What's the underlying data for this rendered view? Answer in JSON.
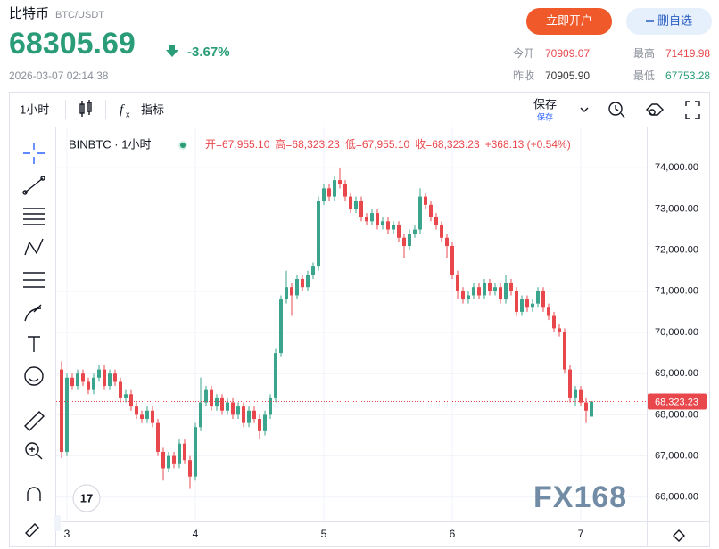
{
  "header": {
    "name": "比特币",
    "pair": "BTC/USDT",
    "price": "68305.69",
    "change": "-3.67%",
    "time": "2026-03-07 02:14:38",
    "buttons": [
      "立即开户",
      "删自选"
    ],
    "stats": [
      {
        "label": "今开",
        "value": "70909.07"
      },
      {
        "label": "最高",
        "value": "71419.98"
      },
      {
        "label": "昨收",
        "value": "70905.90"
      },
      {
        "label": "最低",
        "value": "67753.28"
      }
    ]
  },
  "toolbar": {
    "interval": "1小时",
    "indicators": "指标",
    "save": "保存",
    "save_sub": "保存"
  },
  "watermark": "FX168",
  "chart_data": {
    "type": "candlestick",
    "symbol": "BINBTC · 1小时",
    "legend_ohlc": [
      "开=67,955.10",
      "高=68,323.23",
      "低=67,955.10",
      "收=68,323.23",
      "+368.13 (+0.54%)"
    ],
    "up_color": "#3aa58c",
    "down_color": "#e8474c",
    "categories": [
      null,
      "3",
      null,
      null,
      null,
      null,
      null,
      null,
      null,
      null,
      null,
      null,
      null,
      null,
      null,
      null,
      null,
      null,
      null,
      null,
      null,
      null,
      null,
      null,
      null,
      "4",
      null,
      null,
      null,
      null,
      null,
      null,
      null,
      null,
      null,
      null,
      null,
      null,
      null,
      null,
      null,
      null,
      null,
      null,
      null,
      null,
      null,
      null,
      null,
      "5",
      null,
      null,
      null,
      null,
      null,
      null,
      null,
      null,
      null,
      null,
      null,
      null,
      null,
      null,
      null,
      null,
      null,
      null,
      null,
      null,
      null,
      null,
      null,
      "6",
      null,
      null,
      null,
      null,
      null,
      null,
      null,
      null,
      null,
      null,
      null,
      null,
      null,
      null,
      null,
      null,
      null,
      null,
      null,
      null,
      null,
      null,
      null,
      "7",
      null,
      null
    ],
    "open": [
      69100,
      67100,
      68900,
      68700,
      69000,
      68800,
      68600,
      68900,
      69100,
      68700,
      69000,
      68800,
      68400,
      68500,
      68200,
      68000,
      67900,
      68100,
      67800,
      67100,
      66700,
      67000,
      66800,
      67300,
      66900,
      66500,
      67700,
      68300,
      68600,
      68200,
      68400,
      68100,
      68300,
      68000,
      68200,
      67800,
      68100,
      67900,
      67600,
      68000,
      68400,
      69500,
      70800,
      71100,
      70900,
      71300,
      71100,
      71400,
      71600,
      73200,
      73500,
      73300,
      73700,
      73600,
      73300,
      73000,
      73200,
      72800,
      72700,
      72900,
      72600,
      72700,
      72500,
      72600,
      72300,
      72100,
      72400,
      72500,
      73300,
      73100,
      72800,
      72600,
      72300,
      72100,
      71400,
      71000,
      70800,
      70900,
      71100,
      70900,
      71200,
      71000,
      71100,
      70800,
      71200,
      71000,
      70500,
      70800,
      70600,
      70700,
      71000,
      70600,
      70400,
      70100,
      70000,
      69100,
      68400,
      68600,
      68300,
      67955.1
    ],
    "high": [
      69300,
      69000,
      69000,
      69100,
      69100,
      68900,
      69000,
      69200,
      69200,
      69100,
      69100,
      68900,
      68600,
      68600,
      68300,
      68100,
      68200,
      68200,
      67900,
      67200,
      67100,
      67100,
      67400,
      67400,
      67000,
      67800,
      68900,
      68700,
      68700,
      68500,
      68500,
      68400,
      68400,
      68300,
      68300,
      68200,
      68200,
      68000,
      68100,
      68500,
      69600,
      70900,
      71500,
      71200,
      71400,
      71400,
      71500,
      71700,
      73300,
      73600,
      73600,
      73800,
      74000,
      73700,
      73400,
      73300,
      73300,
      72900,
      73000,
      73000,
      72800,
      72800,
      72700,
      72700,
      72400,
      72500,
      72600,
      73500,
      73400,
      73200,
      72900,
      72700,
      72400,
      72200,
      71500,
      71100,
      71000,
      71200,
      71200,
      71300,
      71300,
      71200,
      71200,
      71400,
      71300,
      71100,
      70900,
      70900,
      70800,
      71100,
      71100,
      70700,
      70500,
      70200,
      70100,
      69200,
      68700,
      68700,
      68400,
      68323.23
    ],
    "low": [
      66950,
      67000,
      68600,
      68600,
      68700,
      68500,
      68500,
      68800,
      68600,
      68600,
      68700,
      68300,
      68300,
      68100,
      67900,
      67800,
      67800,
      67700,
      67000,
      66400,
      66600,
      66700,
      66700,
      66800,
      66200,
      66400,
      67600,
      68200,
      68100,
      68100,
      68000,
      68000,
      67900,
      67900,
      67700,
      67700,
      67800,
      67400,
      67500,
      67900,
      68300,
      69400,
      70700,
      70400,
      70800,
      71000,
      71000,
      71300,
      71500,
      73100,
      73200,
      73200,
      73500,
      73200,
      72900,
      72900,
      72700,
      72600,
      72600,
      72500,
      72500,
      72400,
      72400,
      72200,
      71800,
      72000,
      72300,
      72400,
      73000,
      72700,
      72500,
      72200,
      71800,
      71300,
      70800,
      70700,
      70700,
      70800,
      70800,
      70800,
      70900,
      70900,
      70700,
      70700,
      70900,
      70400,
      70400,
      70500,
      70500,
      70600,
      70500,
      70300,
      70000,
      69900,
      69000,
      68300,
      68200,
      68200,
      67800,
      67955.1
    ],
    "close": [
      67100,
      68900,
      68700,
      69000,
      68800,
      68600,
      68900,
      69100,
      68700,
      69000,
      68800,
      68400,
      68500,
      68200,
      68000,
      67900,
      68100,
      67800,
      67100,
      66700,
      67000,
      66800,
      67300,
      66900,
      66500,
      67700,
      68300,
      68600,
      68200,
      68400,
      68100,
      68300,
      68000,
      68200,
      67800,
      68100,
      67900,
      67600,
      68000,
      68400,
      69500,
      70800,
      71100,
      70900,
      71300,
      71100,
      71400,
      71600,
      73200,
      73500,
      73300,
      73700,
      73600,
      73300,
      73000,
      73200,
      72800,
      72700,
      72900,
      72600,
      72700,
      72500,
      72600,
      72300,
      72100,
      72400,
      72500,
      73300,
      73100,
      72800,
      72600,
      72300,
      72100,
      71400,
      71000,
      70800,
      70900,
      71100,
      70900,
      71200,
      71000,
      71100,
      70800,
      71200,
      71000,
      70500,
      70800,
      70600,
      70700,
      71000,
      70600,
      70400,
      70100,
      70000,
      69100,
      68400,
      68600,
      68300,
      68100,
      68323.23
    ],
    "last_price": {
      "value": 68323.23,
      "label": "68,323.23"
    },
    "ylim": [
      65410,
      74980
    ],
    "yticks": [
      {
        "value": 66000,
        "label": "66,000.00"
      },
      {
        "value": 67000,
        "label": "67,000.00"
      },
      {
        "value": 68000,
        "label": "68,000.00"
      },
      {
        "value": 69000,
        "label": "69,000.00"
      },
      {
        "value": 70000,
        "label": "70,000.00"
      },
      {
        "value": 71000,
        "label": "71,000.00"
      },
      {
        "value": 72000,
        "label": "72,000.00"
      },
      {
        "value": 73000,
        "label": "73,000.00"
      },
      {
        "value": 74000,
        "label": "74,000.00"
      }
    ],
    "grid": true
  }
}
